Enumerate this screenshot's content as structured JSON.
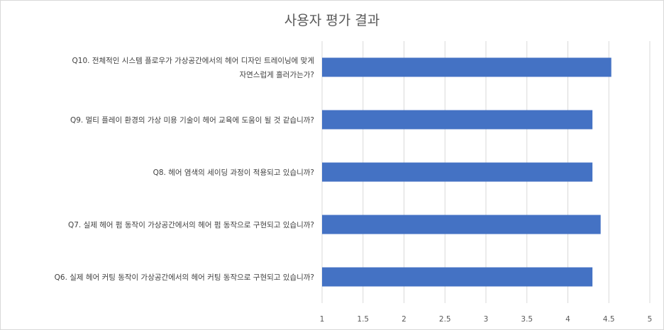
{
  "chart_data": {
    "type": "bar",
    "orientation": "horizontal",
    "title": "사용자 평가 결과",
    "categories": [
      [
        "Q10. 전체적인 시스템 플로우가 가상공간에서의 헤어 디자인 트레이닝에 맞게",
        "자연스럽게 흘러가는가?"
      ],
      [
        "Q9. 멀티 플레이 환경의 가상 미용 기술이 헤어 교육에 도움이 될 것 같습니까?"
      ],
      [
        "Q8. 헤어 염색의 세이딩 과정이 적용되고 있습니까?"
      ],
      [
        "Q7. 실제 헤어 펌 동작이 가상공간에서의 헤어 펌 동작으로 구현되고 있습니까?"
      ],
      [
        "Q6. 실제 헤어 커팅 동작이 가상공간에서의 헤어 커팅 동작으로 구현되고 있습니까?"
      ]
    ],
    "values": [
      4.53,
      4.3,
      4.3,
      4.4,
      4.3
    ],
    "xlim": [
      1,
      5
    ],
    "ticks": [
      "1",
      "1.5",
      "2",
      "2.5",
      "3",
      "3.5",
      "4",
      "4.5",
      "5"
    ],
    "tick_values": [
      1,
      1.5,
      2,
      2.5,
      3,
      3.5,
      4,
      4.5,
      5
    ],
    "grid": true,
    "bar_color": "#4472c4",
    "grid_color": "#d9d9d9"
  }
}
